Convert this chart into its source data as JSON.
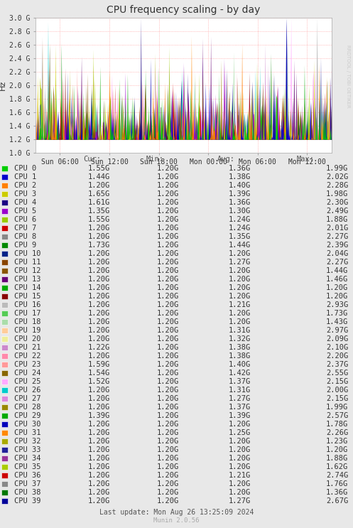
{
  "title": "CPU frequency scaling - by day",
  "ylabel": "Hz",
  "watermark": "RRDTOOL / TOBI OETIKER",
  "munin_version": "Munin 2.0.56",
  "last_update": "Last update: Mon Aug 26 13:25:09 2024",
  "ymin": 1000000000.0,
  "ymax": 3000000000.0,
  "yticks": [
    1000000000.0,
    1200000000.0,
    1400000000.0,
    1600000000.0,
    1800000000.0,
    2000000000.0,
    2200000000.0,
    2400000000.0,
    2600000000.0,
    2800000000.0,
    3000000000.0
  ],
  "ytick_labels": [
    "1.0 G",
    "1.2 G",
    "1.4 G",
    "1.6 G",
    "1.8 G",
    "2.0 G",
    "2.2 G",
    "2.4 G",
    "2.6 G",
    "2.8 G",
    "3.0 G"
  ],
  "xtick_labels": [
    "Sun 06:00",
    "Sun 12:00",
    "Sun 18:00",
    "Mon 00:00",
    "Mon 06:00",
    "Mon 12:00"
  ],
  "header_labels": [
    "Cur:",
    "Min:",
    "Avg:",
    "Max:"
  ],
  "bg_color": "#e8e8e8",
  "plot_bg_color": "#ffffff",
  "grid_color": "#ff9999",
  "cpu_colors": [
    "#00cc00",
    "#0000cc",
    "#ff7f00",
    "#cccc00",
    "#1a0082",
    "#9900cc",
    "#99cc00",
    "#cc0000",
    "#888888",
    "#008800",
    "#002288",
    "#884400",
    "#885500",
    "#660077",
    "#00aa00",
    "#880000",
    "#bbbbbb",
    "#55cc55",
    "#aaddaa",
    "#ffcc99",
    "#eeee99",
    "#cc88cc",
    "#ff88aa",
    "#ff9999",
    "#886600",
    "#ffaaff",
    "#00cccc",
    "#dd88dd",
    "#998800",
    "#00aa00",
    "#0000bb",
    "#ff8800",
    "#aaaa00",
    "#222299",
    "#993399",
    "#aacc00",
    "#cc0000",
    "#888888",
    "#007700",
    "#000099"
  ],
  "cpu_names": [
    "CPU 0",
    "CPU 1",
    "CPU 2",
    "CPU 3",
    "CPU 4",
    "CPU 5",
    "CPU 6",
    "CPU 7",
    "CPU 8",
    "CPU 9",
    "CPU 10",
    "CPU 11",
    "CPU 12",
    "CPU 13",
    "CPU 14",
    "CPU 15",
    "CPU 16",
    "CPU 17",
    "CPU 18",
    "CPU 19",
    "CPU 20",
    "CPU 21",
    "CPU 22",
    "CPU 23",
    "CPU 24",
    "CPU 25",
    "CPU 26",
    "CPU 27",
    "CPU 28",
    "CPU 29",
    "CPU 30",
    "CPU 31",
    "CPU 32",
    "CPU 33",
    "CPU 34",
    "CPU 35",
    "CPU 36",
    "CPU 37",
    "CPU 38",
    "CPU 39"
  ],
  "cur_vals": [
    "1.55G",
    "1.44G",
    "1.20G",
    "1.65G",
    "1.61G",
    "1.35G",
    "1.55G",
    "1.20G",
    "1.20G",
    "1.73G",
    "1.20G",
    "1.20G",
    "1.20G",
    "1.20G",
    "1.20G",
    "1.20G",
    "1.20G",
    "1.20G",
    "1.20G",
    "1.20G",
    "1.20G",
    "1.22G",
    "1.20G",
    "1.59G",
    "1.54G",
    "1.52G",
    "1.20G",
    "1.20G",
    "1.20G",
    "1.39G",
    "1.20G",
    "1.20G",
    "1.20G",
    "1.20G",
    "1.20G",
    "1.20G",
    "1.20G",
    "1.20G",
    "1.20G",
    "1.20G"
  ],
  "min_vals": [
    "1.20G",
    "1.20G",
    "1.20G",
    "1.20G",
    "1.20G",
    "1.20G",
    "1.20G",
    "1.20G",
    "1.20G",
    "1.20G",
    "1.20G",
    "1.20G",
    "1.20G",
    "1.20G",
    "1.20G",
    "1.20G",
    "1.20G",
    "1.20G",
    "1.20G",
    "1.20G",
    "1.20G",
    "1.20G",
    "1.20G",
    "1.20G",
    "1.20G",
    "1.20G",
    "1.20G",
    "1.20G",
    "1.20G",
    "1.20G",
    "1.20G",
    "1.20G",
    "1.20G",
    "1.20G",
    "1.20G",
    "1.20G",
    "1.20G",
    "1.20G",
    "1.20G",
    "1.20G"
  ],
  "avg_vals": [
    "1.36G",
    "1.38G",
    "1.40G",
    "1.39G",
    "1.36G",
    "1.30G",
    "1.24G",
    "1.24G",
    "1.35G",
    "1.44G",
    "1.20G",
    "1.27G",
    "1.20G",
    "1.20G",
    "1.20G",
    "1.20G",
    "1.21G",
    "1.20G",
    "1.20G",
    "1.31G",
    "1.32G",
    "1.38G",
    "1.38G",
    "1.40G",
    "1.42G",
    "1.37G",
    "1.31G",
    "1.27G",
    "1.37G",
    "1.39G",
    "1.20G",
    "1.25G",
    "1.20G",
    "1.20G",
    "1.20G",
    "1.20G",
    "1.21G",
    "1.20G",
    "1.20G",
    "1.27G"
  ],
  "max_vals": [
    "1.99G",
    "2.02G",
    "2.28G",
    "1.98G",
    "2.30G",
    "2.49G",
    "1.88G",
    "2.01G",
    "2.27G",
    "2.39G",
    "2.04G",
    "2.27G",
    "1.44G",
    "1.46G",
    "1.20G",
    "1.20G",
    "2.93G",
    "1.73G",
    "1.43G",
    "2.97G",
    "2.09G",
    "2.10G",
    "2.20G",
    "2.37G",
    "2.55G",
    "2.15G",
    "2.00G",
    "2.15G",
    "1.99G",
    "2.57G",
    "1.78G",
    "2.26G",
    "1.23G",
    "1.20G",
    "1.88G",
    "1.62G",
    "2.74G",
    "1.76G",
    "1.36G",
    "2.67G"
  ]
}
